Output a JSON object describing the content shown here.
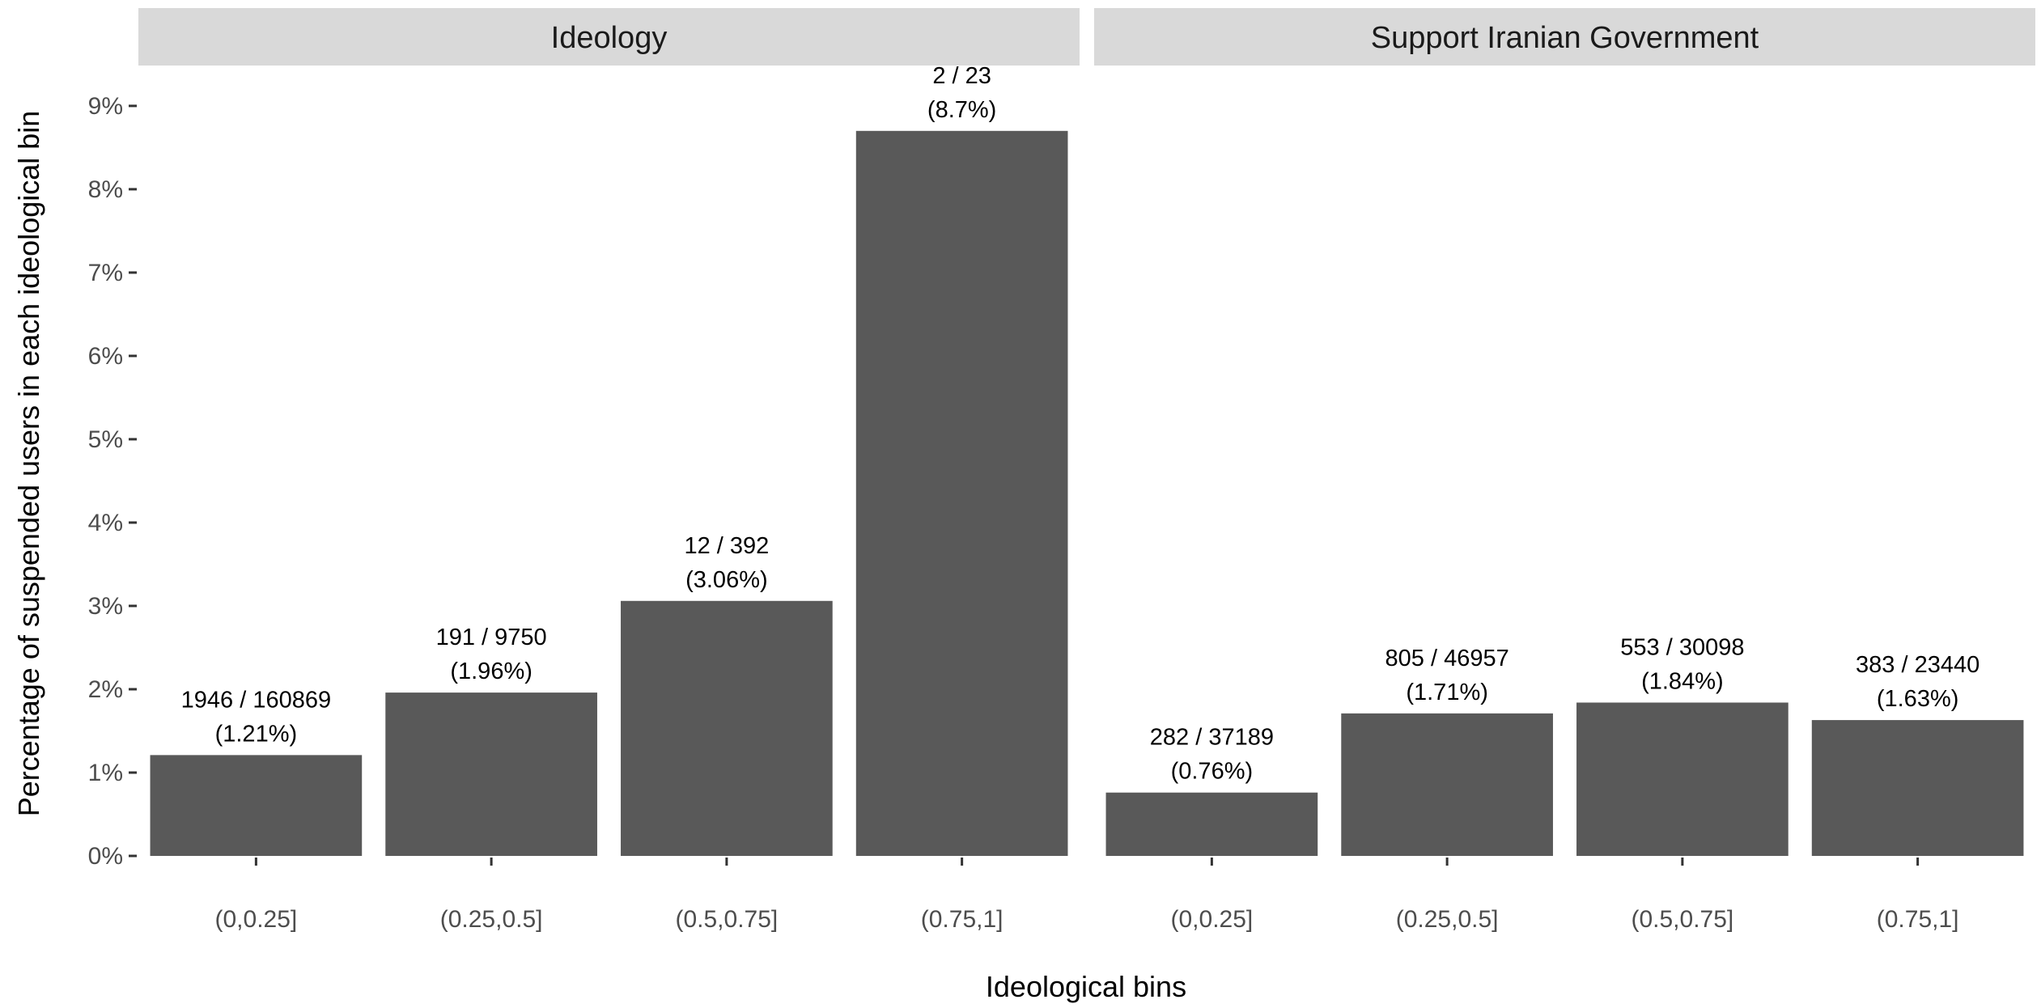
{
  "chart_data": {
    "type": "bar",
    "xlabel": "Ideological bins",
    "ylabel": "Percentage of suspended users in each ideological bin",
    "ylim": [
      0,
      9.3
    ],
    "yticks": [
      "0%",
      "1%",
      "2%",
      "3%",
      "4%",
      "5%",
      "6%",
      "7%",
      "8%",
      "9%"
    ],
    "categories": [
      "(0,0.25]",
      "(0.25,0.5]",
      "(0.5,0.75]",
      "(0.75,1]"
    ],
    "grid": false,
    "legend": "none",
    "bar_color": "#595959",
    "strip_color": "#d9d9d9",
    "panels": [
      {
        "title": "Ideology",
        "values": [
          1.21,
          1.96,
          3.06,
          8.7
        ],
        "counts": [
          "1946 / 160869",
          "191 / 9750",
          "12 / 392",
          "2 / 23"
        ],
        "percents": [
          "(1.21%)",
          "(1.96%)",
          "(3.06%)",
          "(8.7%)"
        ]
      },
      {
        "title": "Support Iranian Government",
        "values": [
          0.76,
          1.71,
          1.84,
          1.63
        ],
        "counts": [
          "282 / 37189",
          "805 / 46957",
          "553 / 30098",
          "383 / 23440"
        ],
        "percents": [
          "(0.76%)",
          "(1.71%)",
          "(1.84%)",
          "(1.63%)"
        ]
      }
    ]
  }
}
